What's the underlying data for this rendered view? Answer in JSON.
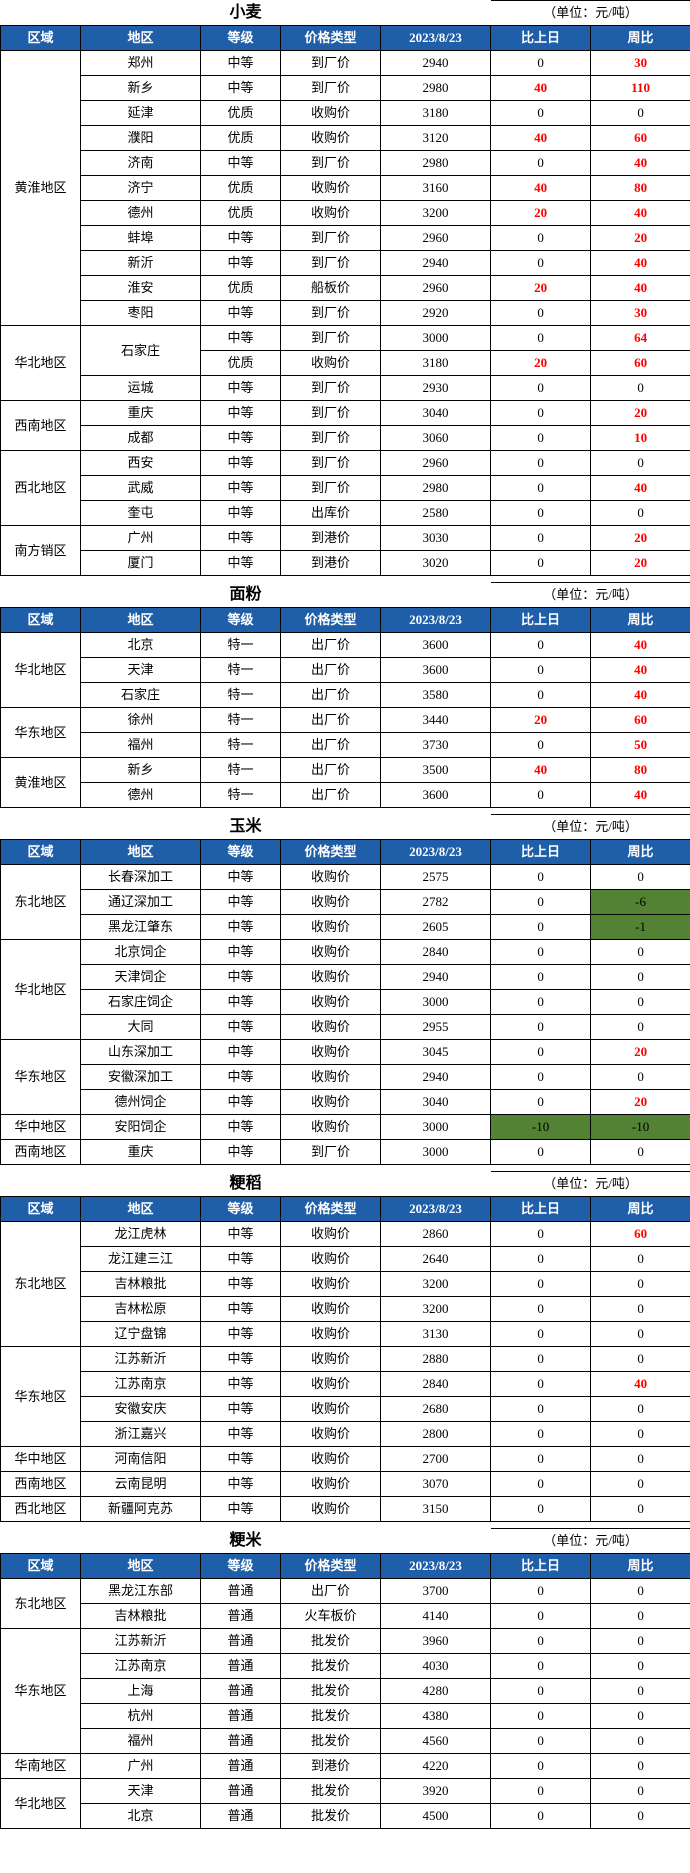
{
  "unit_label": "（单位：元/吨）",
  "headers": [
    "区域",
    "地区",
    "等级",
    "价格类型",
    "2023/8/23",
    "比上日",
    "周比"
  ],
  "tables": [
    {
      "title": "小麦",
      "groups": [
        {
          "region": "黄淮地区",
          "rows": [
            {
              "city": "郑州",
              "grade": "中等",
              "ptype": "到厂价",
              "price": "2940",
              "d": "0",
              "w": "30",
              "dr": false,
              "wr": true
            },
            {
              "city": "新乡",
              "grade": "中等",
              "ptype": "到厂价",
              "price": "2980",
              "d": "40",
              "w": "110",
              "dr": true,
              "wr": true
            },
            {
              "city": "延津",
              "grade": "优质",
              "ptype": "收购价",
              "price": "3180",
              "d": "0",
              "w": "0",
              "dr": false,
              "wr": false
            },
            {
              "city": "濮阳",
              "grade": "优质",
              "ptype": "收购价",
              "price": "3120",
              "d": "40",
              "w": "60",
              "dr": true,
              "wr": true
            },
            {
              "city": "济南",
              "grade": "中等",
              "ptype": "到厂价",
              "price": "2980",
              "d": "0",
              "w": "40",
              "dr": false,
              "wr": true
            },
            {
              "city": "济宁",
              "grade": "优质",
              "ptype": "收购价",
              "price": "3160",
              "d": "40",
              "w": "80",
              "dr": true,
              "wr": true
            },
            {
              "city": "德州",
              "grade": "优质",
              "ptype": "收购价",
              "price": "3200",
              "d": "20",
              "w": "40",
              "dr": true,
              "wr": true
            },
            {
              "city": "蚌埠",
              "grade": "中等",
              "ptype": "到厂价",
              "price": "2960",
              "d": "0",
              "w": "20",
              "dr": false,
              "wr": true
            },
            {
              "city": "新沂",
              "grade": "中等",
              "ptype": "到厂价",
              "price": "2940",
              "d": "0",
              "w": "40",
              "dr": false,
              "wr": true
            },
            {
              "city": "淮安",
              "grade": "优质",
              "ptype": "船板价",
              "price": "2960",
              "d": "20",
              "w": "40",
              "dr": true,
              "wr": true
            },
            {
              "city": "枣阳",
              "grade": "中等",
              "ptype": "到厂价",
              "price": "2920",
              "d": "0",
              "w": "30",
              "dr": false,
              "wr": true
            }
          ]
        },
        {
          "region": "华北地区",
          "rows": [
            {
              "city": "石家庄",
              "grade": "中等",
              "ptype": "到厂价",
              "price": "3000",
              "d": "0",
              "w": "64",
              "dr": false,
              "wr": true,
              "merge": 2
            },
            {
              "city": "",
              "grade": "优质",
              "ptype": "收购价",
              "price": "3180",
              "d": "20",
              "w": "60",
              "dr": true,
              "wr": true,
              "skip": true
            },
            {
              "city": "运城",
              "grade": "中等",
              "ptype": "到厂价",
              "price": "2930",
              "d": "0",
              "w": "0",
              "dr": false,
              "wr": false
            }
          ]
        },
        {
          "region": "西南地区",
          "rows": [
            {
              "city": "重庆",
              "grade": "中等",
              "ptype": "到厂价",
              "price": "3040",
              "d": "0",
              "w": "20",
              "dr": false,
              "wr": true
            },
            {
              "city": "成都",
              "grade": "中等",
              "ptype": "到厂价",
              "price": "3060",
              "d": "0",
              "w": "10",
              "dr": false,
              "wr": true
            }
          ]
        },
        {
          "region": "西北地区",
          "rows": [
            {
              "city": "西安",
              "grade": "中等",
              "ptype": "到厂价",
              "price": "2960",
              "d": "0",
              "w": "0",
              "dr": false,
              "wr": false
            },
            {
              "city": "武威",
              "grade": "中等",
              "ptype": "到厂价",
              "price": "2980",
              "d": "0",
              "w": "40",
              "dr": false,
              "wr": true
            },
            {
              "city": "奎屯",
              "grade": "中等",
              "ptype": "出库价",
              "price": "2580",
              "d": "0",
              "w": "0",
              "dr": false,
              "wr": false
            }
          ]
        },
        {
          "region": "南方销区",
          "rows": [
            {
              "city": "广州",
              "grade": "中等",
              "ptype": "到港价",
              "price": "3030",
              "d": "0",
              "w": "20",
              "dr": false,
              "wr": true
            },
            {
              "city": "厦门",
              "grade": "中等",
              "ptype": "到港价",
              "price": "3020",
              "d": "0",
              "w": "20",
              "dr": false,
              "wr": true
            }
          ]
        }
      ]
    },
    {
      "title": "面粉",
      "groups": [
        {
          "region": "华北地区",
          "rows": [
            {
              "city": "北京",
              "grade": "特一",
              "ptype": "出厂价",
              "price": "3600",
              "d": "0",
              "w": "40",
              "dr": false,
              "wr": true
            },
            {
              "city": "天津",
              "grade": "特一",
              "ptype": "出厂价",
              "price": "3600",
              "d": "0",
              "w": "40",
              "dr": false,
              "wr": true
            },
            {
              "city": "石家庄",
              "grade": "特一",
              "ptype": "出厂价",
              "price": "3580",
              "d": "0",
              "w": "40",
              "dr": false,
              "wr": true
            }
          ]
        },
        {
          "region": "华东地区",
          "rows": [
            {
              "city": "徐州",
              "grade": "特一",
              "ptype": "出厂价",
              "price": "3440",
              "d": "20",
              "w": "60",
              "dr": true,
              "wr": true
            },
            {
              "city": "福州",
              "grade": "特一",
              "ptype": "出厂价",
              "price": "3730",
              "d": "0",
              "w": "50",
              "dr": false,
              "wr": true
            }
          ]
        },
        {
          "region": "黄淮地区",
          "rows": [
            {
              "city": "新乡",
              "grade": "特一",
              "ptype": "出厂价",
              "price": "3500",
              "d": "40",
              "w": "80",
              "dr": true,
              "wr": true
            },
            {
              "city": "德州",
              "grade": "特一",
              "ptype": "出厂价",
              "price": "3600",
              "d": "0",
              "w": "40",
              "dr": false,
              "wr": true
            }
          ]
        }
      ]
    },
    {
      "title": "玉米",
      "groups": [
        {
          "region": "东北地区",
          "rows": [
            {
              "city": "长春深加工",
              "grade": "中等",
              "ptype": "收购价",
              "price": "2575",
              "d": "0",
              "w": "0",
              "dr": false,
              "wr": false
            },
            {
              "city": "通辽深加工",
              "grade": "中等",
              "ptype": "收购价",
              "price": "2782",
              "d": "0",
              "w": "-6",
              "dr": false,
              "wr": false,
              "wg": true
            },
            {
              "city": "黑龙江肇东",
              "grade": "中等",
              "ptype": "收购价",
              "price": "2605",
              "d": "0",
              "w": "-1",
              "dr": false,
              "wr": false,
              "wg": true
            }
          ]
        },
        {
          "region": "华北地区",
          "rows": [
            {
              "city": "北京饲企",
              "grade": "中等",
              "ptype": "收购价",
              "price": "2840",
              "d": "0",
              "w": "0",
              "dr": false,
              "wr": false
            },
            {
              "city": "天津饲企",
              "grade": "中等",
              "ptype": "收购价",
              "price": "2940",
              "d": "0",
              "w": "0",
              "dr": false,
              "wr": false
            },
            {
              "city": "石家庄饲企",
              "grade": "中等",
              "ptype": "收购价",
              "price": "3000",
              "d": "0",
              "w": "0",
              "dr": false,
              "wr": false
            },
            {
              "city": "大同",
              "grade": "中等",
              "ptype": "收购价",
              "price": "2955",
              "d": "0",
              "w": "0",
              "dr": false,
              "wr": false
            }
          ]
        },
        {
          "region": "华东地区",
          "rows": [
            {
              "city": "山东深加工",
              "grade": "中等",
              "ptype": "收购价",
              "price": "3045",
              "d": "0",
              "w": "20",
              "dr": false,
              "wr": true
            },
            {
              "city": "安徽深加工",
              "grade": "中等",
              "ptype": "收购价",
              "price": "2940",
              "d": "0",
              "w": "0",
              "dr": false,
              "wr": false
            },
            {
              "city": "德州饲企",
              "grade": "中等",
              "ptype": "收购价",
              "price": "3040",
              "d": "0",
              "w": "20",
              "dr": false,
              "wr": true
            }
          ]
        },
        {
          "region": "华中地区",
          "rows": [
            {
              "city": "安阳饲企",
              "grade": "中等",
              "ptype": "收购价",
              "price": "3000",
              "d": "-10",
              "w": "-10",
              "dr": false,
              "wr": false,
              "dg": true,
              "wg": true
            }
          ]
        },
        {
          "region": "西南地区",
          "rows": [
            {
              "city": "重庆",
              "grade": "中等",
              "ptype": "到厂价",
              "price": "3000",
              "d": "0",
              "w": "0",
              "dr": false,
              "wr": false
            }
          ]
        }
      ]
    },
    {
      "title": "粳稻",
      "groups": [
        {
          "region": "东北地区",
          "rows": [
            {
              "city": "龙江虎林",
              "grade": "中等",
              "ptype": "收购价",
              "price": "2860",
              "d": "0",
              "w": "60",
              "dr": false,
              "wr": true
            },
            {
              "city": "龙江建三江",
              "grade": "中等",
              "ptype": "收购价",
              "price": "2640",
              "d": "0",
              "w": "0",
              "dr": false,
              "wr": false
            },
            {
              "city": "吉林粮批",
              "grade": "中等",
              "ptype": "收购价",
              "price": "3200",
              "d": "0",
              "w": "0",
              "dr": false,
              "wr": false
            },
            {
              "city": "吉林松原",
              "grade": "中等",
              "ptype": "收购价",
              "price": "3200",
              "d": "0",
              "w": "0",
              "dr": false,
              "wr": false
            },
            {
              "city": "辽宁盘锦",
              "grade": "中等",
              "ptype": "收购价",
              "price": "3130",
              "d": "0",
              "w": "0",
              "dr": false,
              "wr": false
            }
          ]
        },
        {
          "region": "华东地区",
          "rows": [
            {
              "city": "江苏新沂",
              "grade": "中等",
              "ptype": "收购价",
              "price": "2880",
              "d": "0",
              "w": "0",
              "dr": false,
              "wr": false
            },
            {
              "city": "江苏南京",
              "grade": "中等",
              "ptype": "收购价",
              "price": "2840",
              "d": "0",
              "w": "40",
              "dr": false,
              "wr": true
            },
            {
              "city": "安徽安庆",
              "grade": "中等",
              "ptype": "收购价",
              "price": "2680",
              "d": "0",
              "w": "0",
              "dr": false,
              "wr": false
            },
            {
              "city": "浙江嘉兴",
              "grade": "中等",
              "ptype": "收购价",
              "price": "2800",
              "d": "0",
              "w": "0",
              "dr": false,
              "wr": false
            }
          ]
        },
        {
          "region": "华中地区",
          "rows": [
            {
              "city": "河南信阳",
              "grade": "中等",
              "ptype": "收购价",
              "price": "2700",
              "d": "0",
              "w": "0",
              "dr": false,
              "wr": false
            }
          ]
        },
        {
          "region": "西南地区",
          "rows": [
            {
              "city": "云南昆明",
              "grade": "中等",
              "ptype": "收购价",
              "price": "3070",
              "d": "0",
              "w": "0",
              "dr": false,
              "wr": false
            }
          ]
        },
        {
          "region": "西北地区",
          "rows": [
            {
              "city": "新疆阿克苏",
              "grade": "中等",
              "ptype": "收购价",
              "price": "3150",
              "d": "0",
              "w": "0",
              "dr": false,
              "wr": false
            }
          ]
        }
      ]
    },
    {
      "title": "粳米",
      "groups": [
        {
          "region": "东北地区",
          "rows": [
            {
              "city": "黑龙江东部",
              "grade": "普通",
              "ptype": "出厂价",
              "price": "3700",
              "d": "0",
              "w": "0",
              "dr": false,
              "wr": false
            },
            {
              "city": "吉林粮批",
              "grade": "普通",
              "ptype": "火车板价",
              "price": "4140",
              "d": "0",
              "w": "0",
              "dr": false,
              "wr": false
            }
          ]
        },
        {
          "region": "华东地区",
          "rows": [
            {
              "city": "江苏新沂",
              "grade": "普通",
              "ptype": "批发价",
              "price": "3960",
              "d": "0",
              "w": "0",
              "dr": false,
              "wr": false
            },
            {
              "city": "江苏南京",
              "grade": "普通",
              "ptype": "批发价",
              "price": "4030",
              "d": "0",
              "w": "0",
              "dr": false,
              "wr": false
            },
            {
              "city": "上海",
              "grade": "普通",
              "ptype": "批发价",
              "price": "4280",
              "d": "0",
              "w": "0",
              "dr": false,
              "wr": false
            },
            {
              "city": "杭州",
              "grade": "普通",
              "ptype": "批发价",
              "price": "4380",
              "d": "0",
              "w": "0",
              "dr": false,
              "wr": false
            },
            {
              "city": "福州",
              "grade": "普通",
              "ptype": "批发价",
              "price": "4560",
              "d": "0",
              "w": "0",
              "dr": false,
              "wr": false
            }
          ]
        },
        {
          "region": "华南地区",
          "rows": [
            {
              "city": "广州",
              "grade": "普通",
              "ptype": "到港价",
              "price": "4220",
              "d": "0",
              "w": "0",
              "dr": false,
              "wr": false
            }
          ]
        },
        {
          "region": "华北地区",
          "rows": [
            {
              "city": "天津",
              "grade": "普通",
              "ptype": "批发价",
              "price": "3920",
              "d": "0",
              "w": "0",
              "dr": false,
              "wr": false
            },
            {
              "city": "北京",
              "grade": "普通",
              "ptype": "批发价",
              "price": "4500",
              "d": "0",
              "w": "0",
              "dr": false,
              "wr": false
            }
          ]
        }
      ]
    }
  ]
}
